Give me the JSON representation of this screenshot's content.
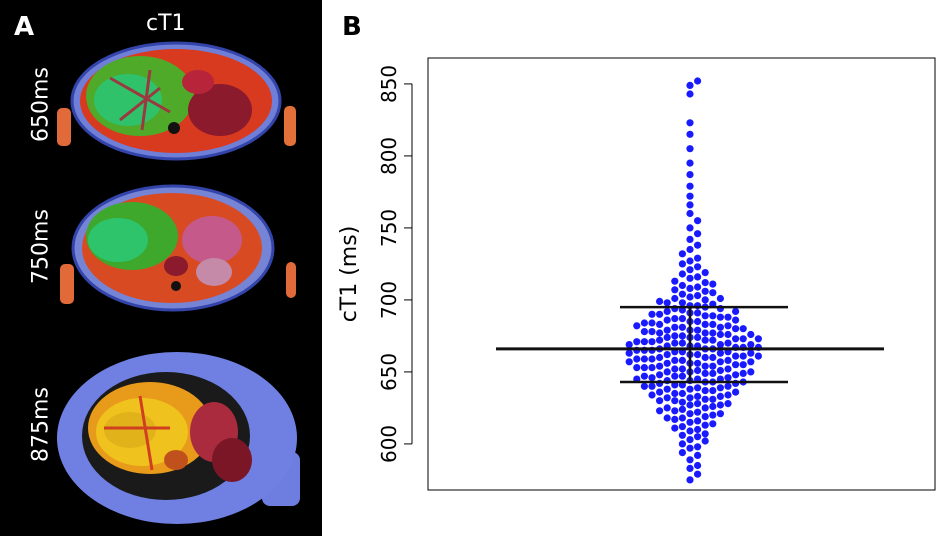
{
  "panel_a": {
    "letter": "A",
    "title": "cT1",
    "scans": [
      {
        "label": "650ms"
      },
      {
        "label": "750ms"
      },
      {
        "label": "875ms"
      }
    ]
  },
  "panel_b": {
    "letter": "B"
  },
  "chart_data": {
    "type": "scatter",
    "subtype": "beeswarm",
    "title": "",
    "xlabel": "",
    "ylabel": "cT1 (ms)",
    "ylim": [
      568,
      868
    ],
    "yticks": [
      600,
      650,
      700,
      750,
      800,
      850
    ],
    "point_color": "#1a1aff",
    "summary_lines": {
      "mean": 666,
      "upper": 695,
      "lower": 643
    },
    "values": [
      575,
      579,
      583,
      585,
      589,
      592,
      594,
      597,
      598,
      600,
      602,
      603,
      605,
      606,
      607,
      609,
      610,
      611,
      612,
      613,
      614,
      615,
      616,
      617,
      618,
      618,
      619,
      620,
      621,
      621,
      622,
      623,
      623,
      624,
      625,
      625,
      626,
      627,
      627,
      628,
      628,
      629,
      630,
      630,
      631,
      631,
      632,
      632,
      633,
      633,
      634,
      634,
      635,
      635,
      636,
      636,
      637,
      637,
      638,
      638,
      639,
      639,
      640,
      640,
      640,
      641,
      641,
      642,
      642,
      643,
      643,
      643,
      644,
      644,
      645,
      645,
      645,
      646,
      646,
      647,
      647,
      647,
      648,
      648,
      649,
      649,
      649,
      650,
      650,
      650,
      651,
      651,
      652,
      652,
      652,
      653,
      653,
      653,
      654,
      654,
      654,
      655,
      655,
      656,
      656,
      656,
      657,
      657,
      657,
      658,
      658,
      658,
      659,
      659,
      659,
      660,
      660,
      660,
      661,
      661,
      661,
      662,
      662,
      662,
      663,
      663,
      663,
      664,
      664,
      664,
      665,
      665,
      665,
      666,
      666,
      666,
      667,
      667,
      667,
      668,
      668,
      668,
      669,
      669,
      669,
      670,
      670,
      670,
      671,
      671,
      671,
      672,
      672,
      672,
      673,
      673,
      673,
      674,
      674,
      674,
      675,
      675,
      676,
      676,
      676,
      677,
      677,
      677,
      678,
      678,
      679,
      679,
      679,
      680,
      680,
      681,
      681,
      681,
      682,
      682,
      683,
      683,
      683,
      684,
      684,
      685,
      685,
      686,
      686,
      687,
      687,
      688,
      688,
      689,
      689,
      690,
      690,
      691,
      691,
      692,
      692,
      693,
      694,
      694,
      695,
      696,
      696,
      697,
      698,
      698,
      699,
      700,
      701,
      701,
      702,
      703,
      704,
      705,
      706,
      707,
      708,
      709,
      710,
      711,
      712,
      713,
      715,
      716,
      718,
      719,
      721,
      723,
      725,
      727,
      729,
      732,
      735,
      738,
      742,
      746,
      750,
      755,
      760,
      766,
      772,
      779,
      787,
      795,
      805,
      815,
      823,
      843,
      849,
      852
    ]
  }
}
